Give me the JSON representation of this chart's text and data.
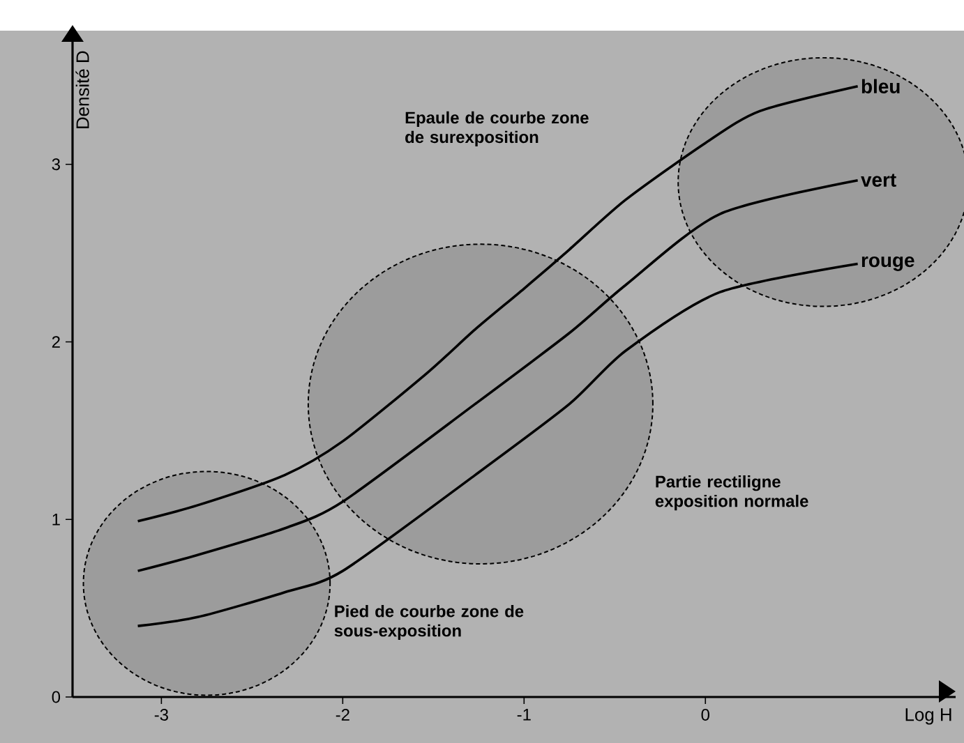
{
  "chart_data": {
    "type": "line",
    "xlabel": "Log H",
    "ylabel": "Densité D",
    "xlim": [
      -3.49,
      1.38
    ],
    "ylim": [
      0,
      3.69
    ],
    "xticks": [
      -3,
      -2,
      -1,
      0
    ],
    "yticks": [
      0,
      1,
      2,
      3
    ],
    "annotations": [
      "Epaule de courbe zone de surexposition",
      "Partie rectiligne exposition normale",
      "Pied de courbe zone de sous-exposition"
    ],
    "series": [
      {
        "name": "bleu",
        "color": "#000000",
        "x": [
          -3.13,
          -2.8,
          -2.32,
          -2.0,
          -1.54,
          -1.27,
          -1.0,
          -0.75,
          -0.44,
          0.0,
          0.3,
          0.84
        ],
        "values": [
          0.99,
          1.08,
          1.25,
          1.44,
          1.82,
          2.07,
          2.3,
          2.52,
          2.8,
          3.12,
          3.3,
          3.44
        ]
      },
      {
        "name": "vert",
        "color": "#000000",
        "x": [
          -3.13,
          -2.8,
          -2.32,
          -2.0,
          -1.27,
          -0.75,
          -0.44,
          0.08,
          0.84
        ],
        "values": [
          0.71,
          0.8,
          0.95,
          1.1,
          1.65,
          2.05,
          2.32,
          2.72,
          2.91
        ]
      },
      {
        "name": "rouge",
        "color": "#000000",
        "x": [
          -3.13,
          -2.8,
          -2.32,
          -2.0,
          -1.27,
          -0.75,
          -0.44,
          0.08,
          0.84
        ],
        "values": [
          0.4,
          0.45,
          0.59,
          0.71,
          1.25,
          1.65,
          1.95,
          2.28,
          2.44
        ]
      }
    ]
  }
}
